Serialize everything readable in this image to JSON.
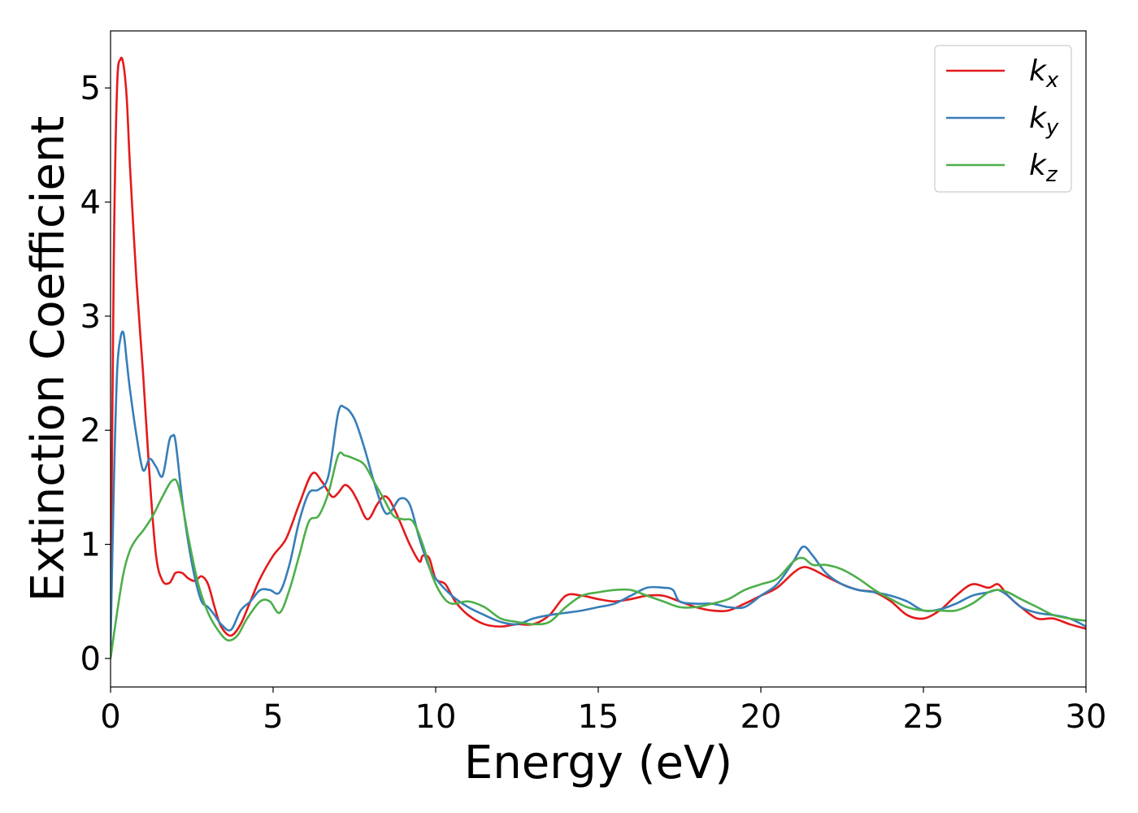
{
  "chart_data": {
    "type": "line",
    "title": "",
    "xlabel": "Energy (eV)",
    "ylabel": "Extinction Coefficient",
    "xlim": [
      0,
      30
    ],
    "ylim": [
      -0.25,
      5.5
    ],
    "xticks": [
      0,
      5,
      10,
      15,
      20,
      25,
      30
    ],
    "yticks": [
      0,
      1,
      2,
      3,
      4,
      5
    ],
    "grid": false,
    "legend_position": "top-right",
    "series": [
      {
        "name": "k",
        "subscript": "x",
        "color": "#e41a1c",
        "x": [
          0,
          0.1,
          0.2,
          0.3,
          0.4,
          0.5,
          0.6,
          0.8,
          1.0,
          1.2,
          1.4,
          1.6,
          1.8,
          1.9,
          2.0,
          2.2,
          2.4,
          2.6,
          2.8,
          3.0,
          3.2,
          3.4,
          3.7,
          4.0,
          4.3,
          4.6,
          5.0,
          5.4,
          5.8,
          6.2,
          6.5,
          6.8,
          7.0,
          7.2,
          7.4,
          7.6,
          7.9,
          8.2,
          8.4,
          8.6,
          8.9,
          9.2,
          9.5,
          9.6,
          9.8,
          10.0,
          10.3,
          10.6,
          11.0,
          11.5,
          12.0,
          12.5,
          13.0,
          13.5,
          14.0,
          14.5,
          15.0,
          15.5,
          16.0,
          16.5,
          17.0,
          17.5,
          18.0,
          18.5,
          19.0,
          19.5,
          20.0,
          20.5,
          21.0,
          21.3,
          21.6,
          22.0,
          22.5,
          23.0,
          23.5,
          24.0,
          24.5,
          25.0,
          25.5,
          26.0,
          26.5,
          27.0,
          27.3,
          27.6,
          28.0,
          28.5,
          29.0,
          29.5,
          30.0
        ],
        "y": [
          0.2,
          3.5,
          5.0,
          5.25,
          5.2,
          4.9,
          4.3,
          3.3,
          2.5,
          1.6,
          0.9,
          0.68,
          0.66,
          0.7,
          0.75,
          0.75,
          0.7,
          0.68,
          0.72,
          0.65,
          0.45,
          0.28,
          0.2,
          0.3,
          0.5,
          0.7,
          0.9,
          1.05,
          1.35,
          1.62,
          1.55,
          1.42,
          1.45,
          1.52,
          1.48,
          1.38,
          1.22,
          1.35,
          1.42,
          1.38,
          1.2,
          1.0,
          0.85,
          0.9,
          0.88,
          0.7,
          0.65,
          0.5,
          0.38,
          0.3,
          0.28,
          0.3,
          0.3,
          0.38,
          0.55,
          0.55,
          0.52,
          0.5,
          0.52,
          0.55,
          0.55,
          0.5,
          0.45,
          0.42,
          0.42,
          0.48,
          0.55,
          0.62,
          0.75,
          0.8,
          0.78,
          0.72,
          0.65,
          0.6,
          0.58,
          0.5,
          0.38,
          0.35,
          0.42,
          0.55,
          0.65,
          0.62,
          0.65,
          0.55,
          0.45,
          0.35,
          0.35,
          0.3,
          0.26
        ]
      },
      {
        "name": "k",
        "subscript": "y",
        "color": "#377eb8",
        "x": [
          0,
          0.1,
          0.2,
          0.3,
          0.4,
          0.5,
          0.6,
          0.8,
          1.0,
          1.2,
          1.4,
          1.6,
          1.8,
          1.9,
          2.0,
          2.2,
          2.4,
          2.6,
          2.8,
          3.0,
          3.2,
          3.4,
          3.7,
          4.0,
          4.3,
          4.6,
          4.9,
          5.2,
          5.5,
          5.8,
          6.1,
          6.4,
          6.7,
          7.0,
          7.2,
          7.5,
          7.8,
          8.1,
          8.4,
          8.6,
          8.9,
          9.2,
          9.5,
          9.8,
          10.0,
          10.5,
          11.0,
          11.5,
          12.0,
          12.5,
          13.0,
          13.5,
          14.0,
          14.5,
          15.0,
          15.5,
          16.0,
          16.5,
          17.0,
          17.3,
          17.5,
          18.0,
          18.5,
          19.0,
          19.5,
          20.0,
          20.5,
          21.0,
          21.3,
          21.6,
          22.0,
          22.5,
          23.0,
          23.5,
          24.0,
          24.5,
          25.0,
          25.5,
          26.0,
          26.5,
          27.0,
          27.3,
          27.6,
          28.0,
          28.5,
          29.0,
          29.5,
          30.0
        ],
        "y": [
          0.1,
          1.5,
          2.5,
          2.8,
          2.85,
          2.6,
          2.35,
          1.95,
          1.65,
          1.75,
          1.68,
          1.6,
          1.9,
          1.95,
          1.9,
          1.4,
          1.0,
          0.7,
          0.5,
          0.45,
          0.38,
          0.3,
          0.25,
          0.42,
          0.5,
          0.6,
          0.6,
          0.58,
          0.82,
          1.2,
          1.45,
          1.48,
          1.6,
          2.15,
          2.2,
          2.1,
          1.85,
          1.55,
          1.3,
          1.28,
          1.4,
          1.35,
          1.05,
          0.8,
          0.7,
          0.55,
          0.45,
          0.38,
          0.32,
          0.3,
          0.35,
          0.38,
          0.4,
          0.42,
          0.45,
          0.48,
          0.55,
          0.62,
          0.62,
          0.6,
          0.5,
          0.48,
          0.48,
          0.45,
          0.45,
          0.55,
          0.65,
          0.85,
          0.98,
          0.9,
          0.75,
          0.65,
          0.6,
          0.58,
          0.55,
          0.5,
          0.42,
          0.43,
          0.48,
          0.55,
          0.58,
          0.6,
          0.55,
          0.45,
          0.4,
          0.38,
          0.35,
          0.28
        ]
      },
      {
        "name": "k",
        "subscript": "z",
        "color": "#4daf4a",
        "x": [
          0,
          0.2,
          0.4,
          0.6,
          0.8,
          1.0,
          1.3,
          1.6,
          1.9,
          2.1,
          2.4,
          2.7,
          3.0,
          3.3,
          3.6,
          3.9,
          4.2,
          4.6,
          4.9,
          5.2,
          5.5,
          5.8,
          6.1,
          6.4,
          6.7,
          7.0,
          7.2,
          7.5,
          7.8,
          8.1,
          8.4,
          8.7,
          9.0,
          9.3,
          9.6,
          9.9,
          10.2,
          10.5,
          11.0,
          11.5,
          12.0,
          12.5,
          13.0,
          13.5,
          14.0,
          14.5,
          15.0,
          15.5,
          16.0,
          16.5,
          17.0,
          17.5,
          18.0,
          18.5,
          19.0,
          19.5,
          20.0,
          20.5,
          21.0,
          21.3,
          21.6,
          22.0,
          22.5,
          23.0,
          23.5,
          24.0,
          24.5,
          25.0,
          25.5,
          26.0,
          26.5,
          27.0,
          27.3,
          27.6,
          28.0,
          28.5,
          29.0,
          29.5,
          30.0
        ],
        "y": [
          0.0,
          0.4,
          0.75,
          0.95,
          1.05,
          1.12,
          1.25,
          1.42,
          1.56,
          1.5,
          1.05,
          0.65,
          0.4,
          0.25,
          0.16,
          0.2,
          0.35,
          0.5,
          0.5,
          0.4,
          0.6,
          0.9,
          1.2,
          1.25,
          1.45,
          1.78,
          1.78,
          1.75,
          1.7,
          1.55,
          1.4,
          1.25,
          1.22,
          1.2,
          1.0,
          0.72,
          0.55,
          0.48,
          0.5,
          0.45,
          0.35,
          0.32,
          0.3,
          0.32,
          0.45,
          0.55,
          0.58,
          0.6,
          0.6,
          0.55,
          0.5,
          0.45,
          0.45,
          0.48,
          0.52,
          0.6,
          0.65,
          0.7,
          0.85,
          0.88,
          0.82,
          0.82,
          0.78,
          0.7,
          0.6,
          0.52,
          0.45,
          0.42,
          0.42,
          0.42,
          0.48,
          0.58,
          0.6,
          0.58,
          0.52,
          0.45,
          0.38,
          0.35,
          0.33
        ]
      }
    ]
  }
}
